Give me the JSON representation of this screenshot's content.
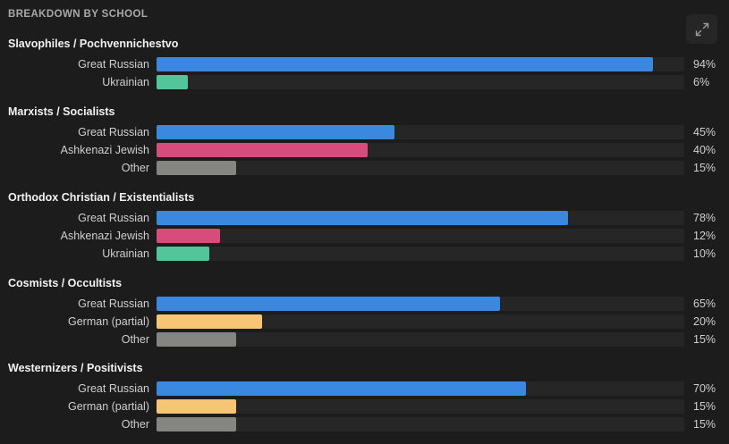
{
  "header": {
    "title": "BREAKDOWN BY SCHOOL"
  },
  "expand_button": {
    "icon": "expand-icon"
  },
  "colors": {
    "Great Russian": "#3a88e0",
    "Ukrainian": "#53c59a",
    "Ashkenazi Jewish": "#d74c7c",
    "Other": "#858582",
    "German (partial)": "#f6c676"
  },
  "chart_data": {
    "type": "bar",
    "orientation": "horizontal",
    "title": "BREAKDOWN BY SCHOOL",
    "xlim": [
      0,
      100
    ],
    "unit": "%",
    "groups": [
      {
        "name": "Slavophiles / Pochvennichestvo",
        "items": [
          {
            "label": "Great Russian",
            "value": 94,
            "display": "94%"
          },
          {
            "label": "Ukrainian",
            "value": 6,
            "display": "6%"
          }
        ]
      },
      {
        "name": "Marxists / Socialists",
        "items": [
          {
            "label": "Great Russian",
            "value": 45,
            "display": "45%"
          },
          {
            "label": "Ashkenazi Jewish",
            "value": 40,
            "display": "40%"
          },
          {
            "label": "Other",
            "value": 15,
            "display": "15%"
          }
        ]
      },
      {
        "name": "Orthodox Christian / Existentialists",
        "items": [
          {
            "label": "Great Russian",
            "value": 78,
            "display": "78%"
          },
          {
            "label": "Ashkenazi Jewish",
            "value": 12,
            "display": "12%"
          },
          {
            "label": "Ukrainian",
            "value": 10,
            "display": "10%"
          }
        ]
      },
      {
        "name": "Cosmists / Occultists",
        "items": [
          {
            "label": "Great Russian",
            "value": 65,
            "display": "65%"
          },
          {
            "label": "German (partial)",
            "value": 20,
            "display": "20%"
          },
          {
            "label": "Other",
            "value": 15,
            "display": "15%"
          }
        ]
      },
      {
        "name": "Westernizers / Positivists",
        "items": [
          {
            "label": "Great Russian",
            "value": 70,
            "display": "70%"
          },
          {
            "label": "German (partial)",
            "value": 15,
            "display": "15%"
          },
          {
            "label": "Other",
            "value": 15,
            "display": "15%"
          }
        ]
      }
    ]
  }
}
